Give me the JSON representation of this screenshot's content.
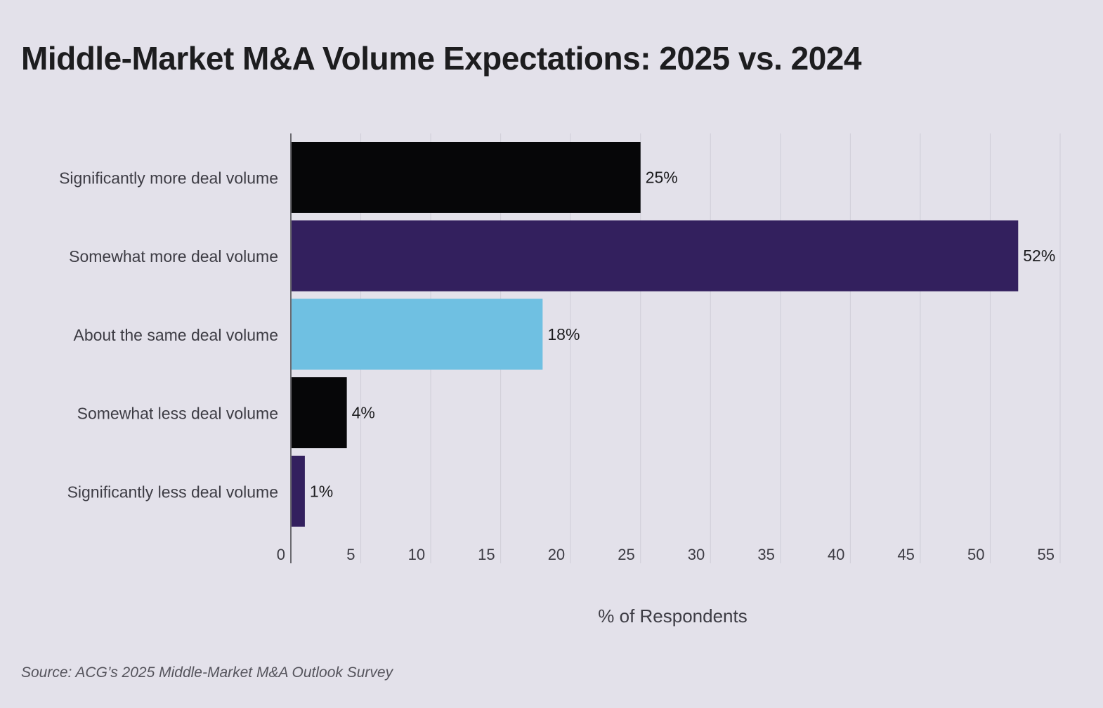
{
  "chart_data": {
    "type": "bar",
    "orientation": "horizontal",
    "title": "Middle-Market M&A Volume Expectations: 2025 vs. 2024",
    "categories": [
      "Significantly more deal volume",
      "Somewhat more deal volume",
      "About the same deal volume",
      "Somewhat less deal volume",
      "Significantly less deal volume"
    ],
    "values": [
      25,
      52,
      18,
      4,
      1
    ],
    "data_labels": [
      "25%",
      "52%",
      "18%",
      "4%",
      "1%"
    ],
    "colors": [
      "#060608",
      "#33205e",
      "#6fc0e2",
      "#060608",
      "#33205e"
    ],
    "xlabel": "% of Respondents",
    "ylabel": "",
    "xlim": [
      0,
      55
    ],
    "xticks": [
      0,
      5,
      10,
      15,
      20,
      25,
      30,
      35,
      40,
      45,
      50,
      55
    ],
    "grid": true
  },
  "source": "Source: ACG’s 2025 Middle-Market M&A Outlook Survey"
}
